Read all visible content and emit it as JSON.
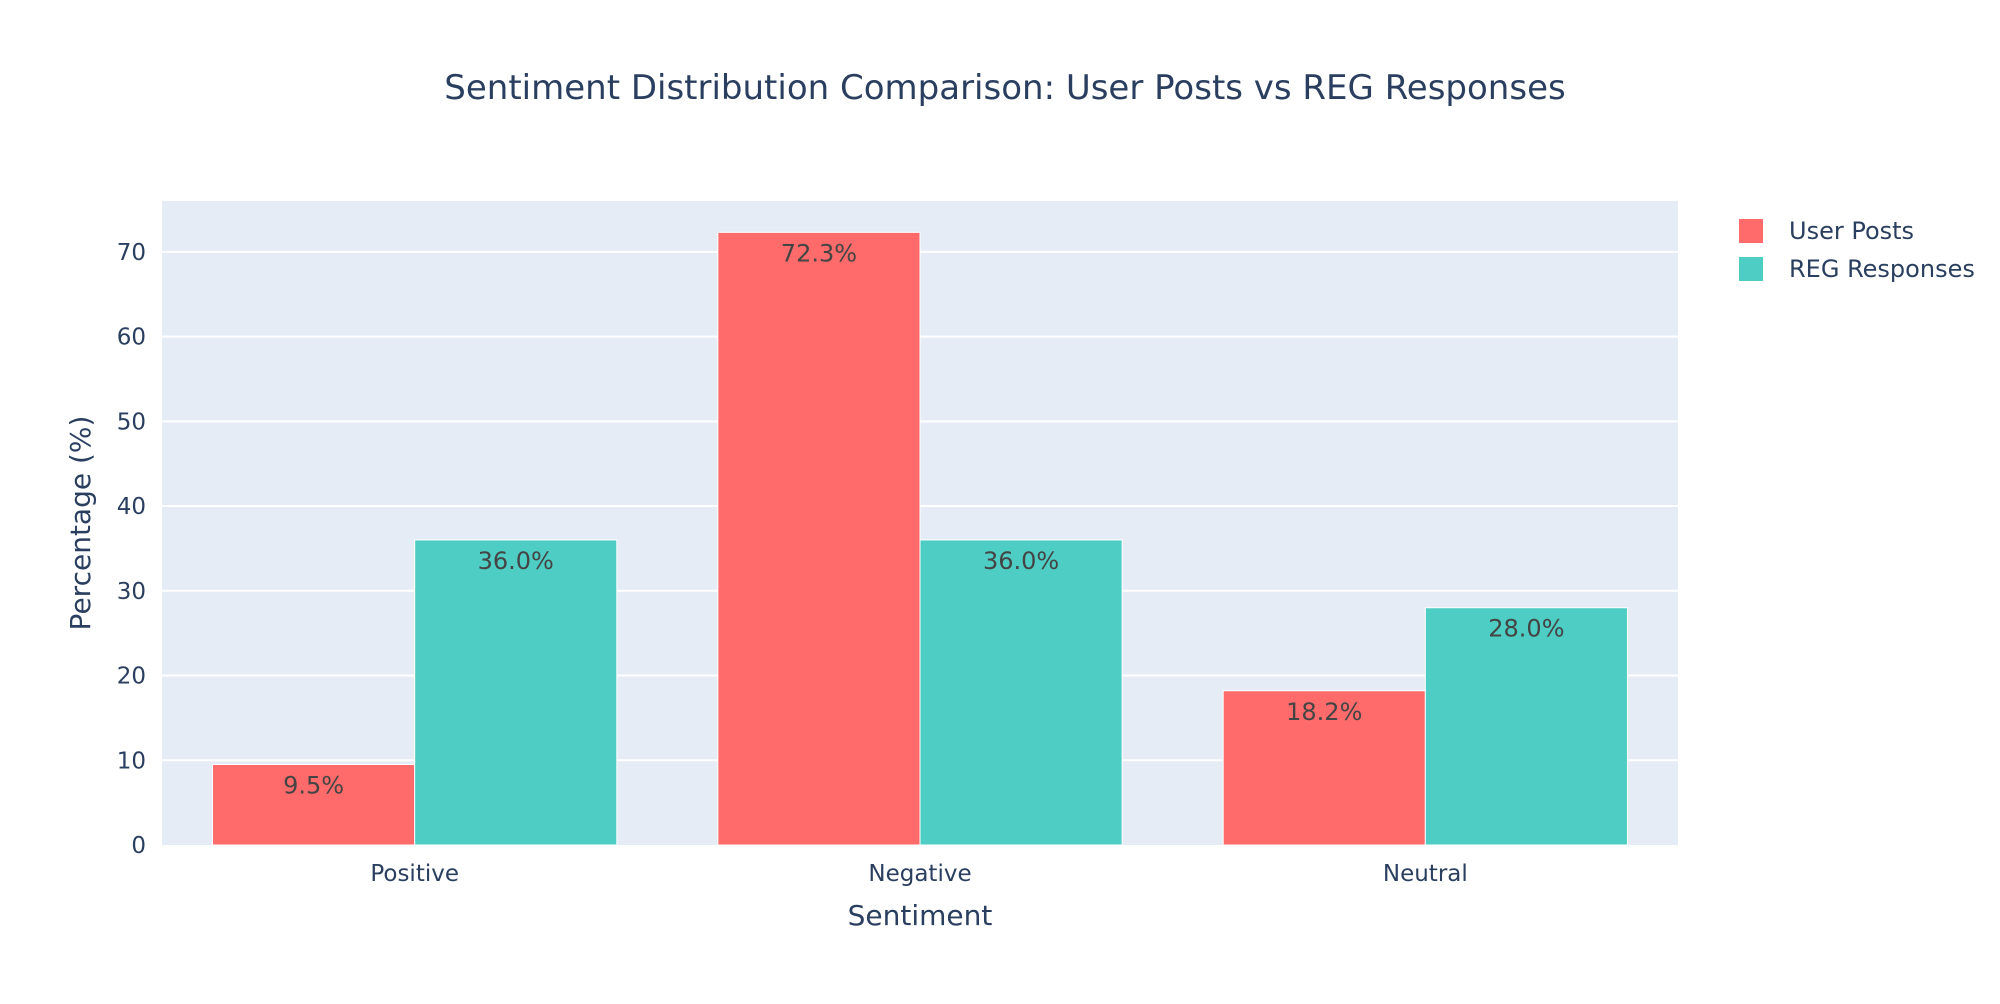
{
  "chart_data": {
    "type": "bar",
    "title": "Sentiment Distribution Comparison: User Posts vs REG Responses",
    "xlabel": "Sentiment",
    "ylabel": "Percentage (%)",
    "categories": [
      "Positive",
      "Negative",
      "Neutral"
    ],
    "series": [
      {
        "name": "User Posts",
        "color": "#ff6b6b",
        "values": [
          9.5,
          72.3,
          18.2
        ],
        "labels": [
          "9.5%",
          "72.3%",
          "18.2%"
        ]
      },
      {
        "name": "REG Responses",
        "color": "#4ecdc4",
        "values": [
          36.0,
          36.0,
          28.0
        ],
        "labels": [
          "36.0%",
          "36.0%",
          "28.0%"
        ]
      }
    ],
    "ylim": [
      0,
      76
    ],
    "yticks": [
      0,
      10,
      20,
      30,
      40,
      50,
      60,
      70
    ],
    "grid": true,
    "legend_position": "top-right",
    "plot_background": "#e5ecf6",
    "text_color": "#2a3f5f"
  }
}
